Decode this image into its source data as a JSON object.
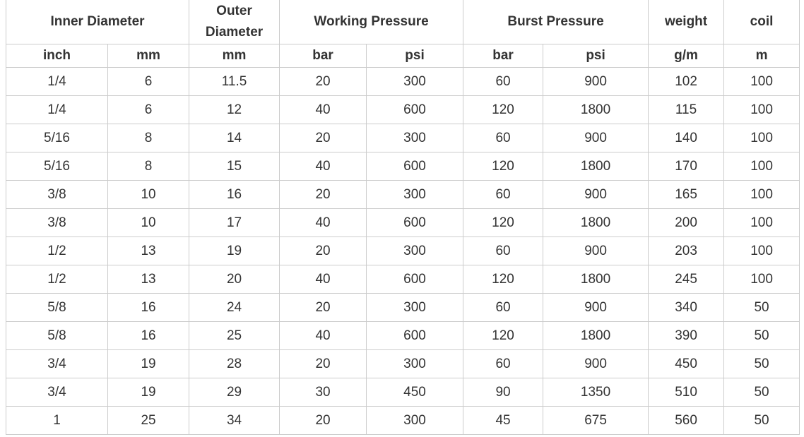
{
  "header": {
    "groups": [
      "Inner Diameter",
      "Outer Diameter",
      "Working Pressure",
      "Burst Pressure",
      "weight",
      "coil"
    ],
    "units": [
      "inch",
      "mm",
      "mm",
      "bar",
      "psi",
      "bar",
      "psi",
      "g/m",
      "m"
    ]
  },
  "rows": [
    [
      "1/4",
      "6",
      "11.5",
      "20",
      "300",
      "60",
      "900",
      "102",
      "100"
    ],
    [
      "1/4",
      "6",
      "12",
      "40",
      "600",
      "120",
      "1800",
      "115",
      "100"
    ],
    [
      "5/16",
      "8",
      "14",
      "20",
      "300",
      "60",
      "900",
      "140",
      "100"
    ],
    [
      "5/16",
      "8",
      "15",
      "40",
      "600",
      "120",
      "1800",
      "170",
      "100"
    ],
    [
      "3/8",
      "10",
      "16",
      "20",
      "300",
      "60",
      "900",
      "165",
      "100"
    ],
    [
      "3/8",
      "10",
      "17",
      "40",
      "600",
      "120",
      "1800",
      "200",
      "100"
    ],
    [
      "1/2",
      "13",
      "19",
      "20",
      "300",
      "60",
      "900",
      "203",
      "100"
    ],
    [
      "1/2",
      "13",
      "20",
      "40",
      "600",
      "120",
      "1800",
      "245",
      "100"
    ],
    [
      "5/8",
      "16",
      "24",
      "20",
      "300",
      "60",
      "900",
      "340",
      "50"
    ],
    [
      "5/8",
      "16",
      "25",
      "40",
      "600",
      "120",
      "1800",
      "390",
      "50"
    ],
    [
      "3/4",
      "19",
      "28",
      "20",
      "300",
      "60",
      "900",
      "450",
      "50"
    ],
    [
      "3/4",
      "19",
      "29",
      "30",
      "450",
      "90",
      "1350",
      "510",
      "50"
    ],
    [
      "1",
      "25",
      "34",
      "20",
      "300",
      "45",
      "675",
      "560",
      "50"
    ]
  ]
}
